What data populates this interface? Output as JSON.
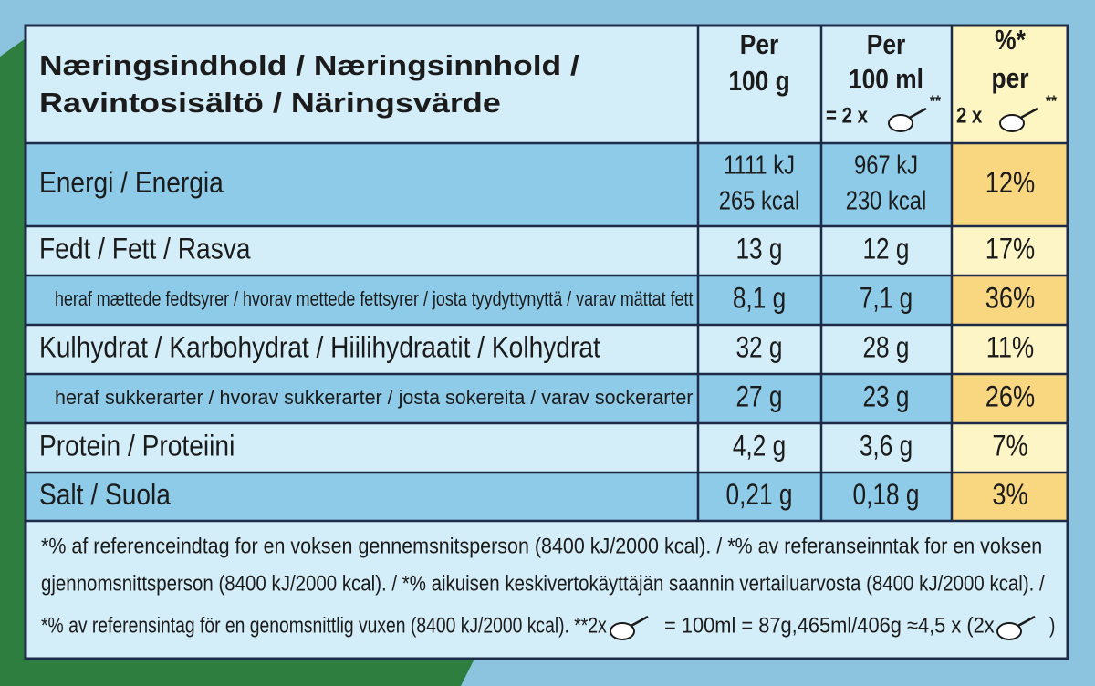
{
  "header": {
    "label": [
      "Næringsindhold / Næringsinnhold /",
      "Ravintosisältö / Näringsvärde"
    ],
    "per100g": [
      "Per",
      "100 g"
    ],
    "per100ml": [
      "Per",
      "100 ml",
      "= 2 x",
      "**"
    ],
    "percent": [
      "%*",
      "per",
      "2 x",
      "**"
    ]
  },
  "rows": [
    {
      "name": "Energi / Energia",
      "per100g": [
        "1111 kJ",
        "265 kcal"
      ],
      "per100ml": [
        "967 kJ",
        "230 kcal"
      ],
      "percent": "12%"
    },
    {
      "name": "Fedt / Fett / Rasva",
      "per100g": [
        "13 g"
      ],
      "per100ml": [
        "12 g"
      ],
      "percent": "17%"
    },
    {
      "name": "heraf mættede fedtsyrer / hvorav mettede fettsyrer / josta tyydyttynyttä / varav mättat fett",
      "per100g": [
        "8,1 g"
      ],
      "per100ml": [
        "7,1 g"
      ],
      "percent": "36%"
    },
    {
      "name": "Kulhydrat / Karbohydrat / Hiilihydraatit / Kolhydrat",
      "per100g": [
        "32 g"
      ],
      "per100ml": [
        "28 g"
      ],
      "percent": "11%"
    },
    {
      "name": "heraf sukkerarter / hvorav sukkerarter / josta sokereita / varav sockerarter",
      "per100g": [
        "27 g"
      ],
      "per100ml": [
        "23 g"
      ],
      "percent": "26%"
    },
    {
      "name": "Protein / Proteiini",
      "per100g": [
        "4,2 g"
      ],
      "per100ml": [
        "3,6 g"
      ],
      "percent": "7%"
    },
    {
      "name": "Salt / Suola",
      "per100g": [
        "0,21 g"
      ],
      "per100ml": [
        "0,18 g"
      ],
      "percent": "3%"
    }
  ],
  "footnote": [
    "*% af referenceindtag for en voksen gennemsnitsperson (8400 kJ/2000 kcal). / *% av referanseinntak for en voksen",
    "gjennomsnittsperson (8400 kJ/2000 kcal). / *% aikuisen keskivertokäyttäjän saannin vertailuarvosta (8400 kJ/2000 kcal). /",
    "*% av referensintag för en genomsnittlig vuxen (8400 kJ/2000 kcal).  **2x",
    "= 100ml = 87g,465ml/406g ≈4,5 x (2x",
    ")"
  ]
}
